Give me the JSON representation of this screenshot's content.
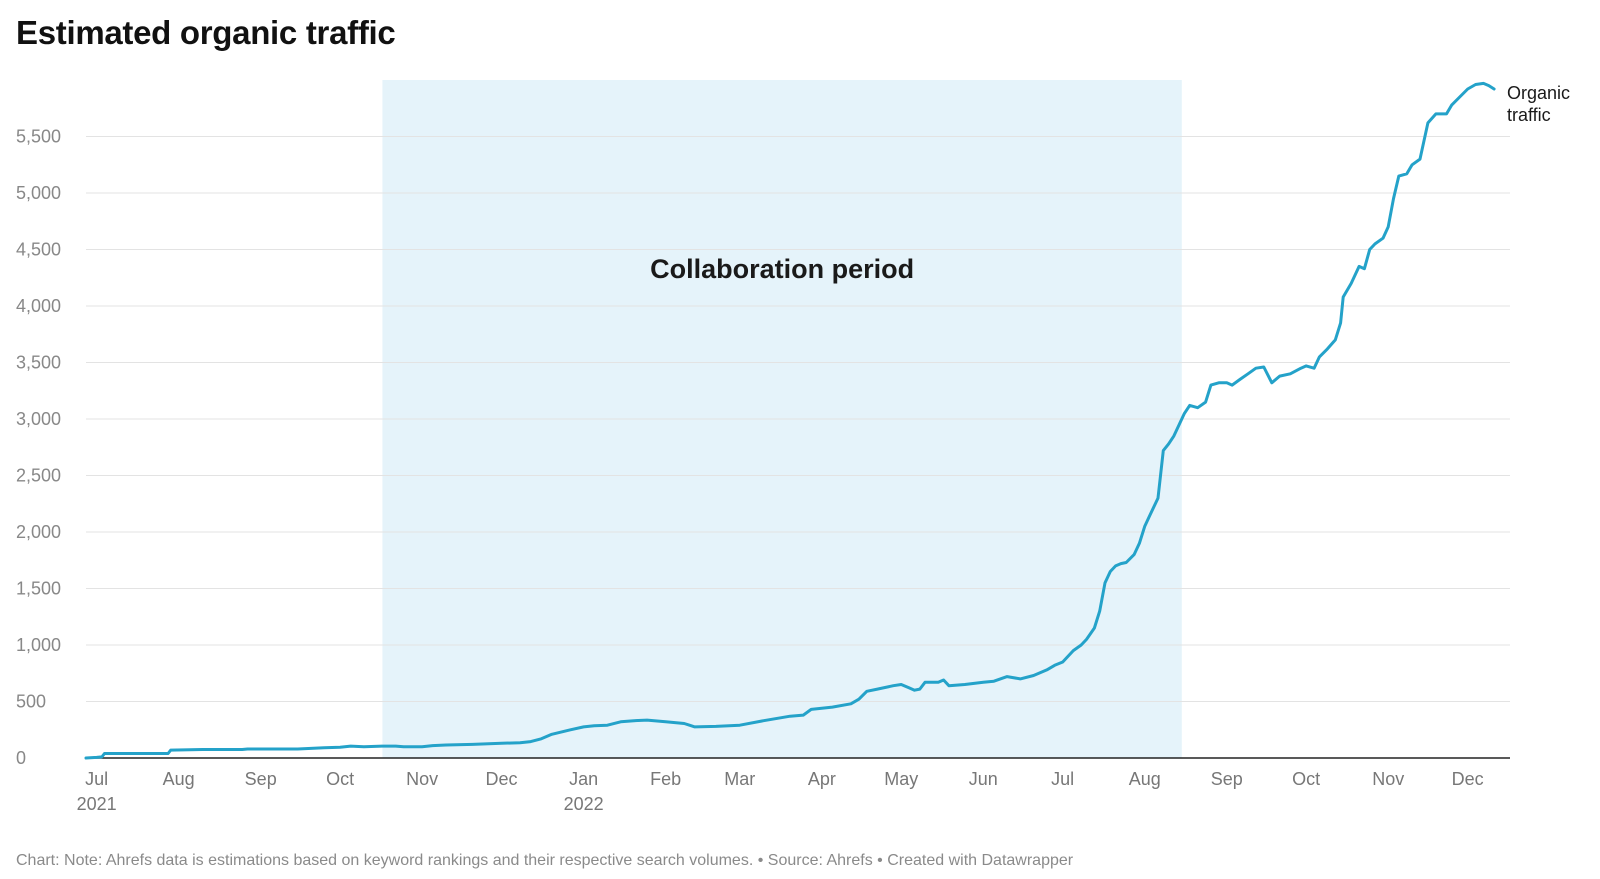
{
  "title": "Estimated organic traffic",
  "footer": {
    "note": "Chart: Note: Ahrefs data is estimations based on keyword rankings and their respective search volumes.",
    "separator": " • ",
    "source": "Source: Ahrefs",
    "credit": "Created with Datawrapper"
  },
  "colors": {
    "line": "#24a2c9",
    "highlight": "#e5f3fa",
    "grid": "#e3e3e3",
    "axis": "#222222",
    "tick_text": "#888888",
    "x_tick_text": "#777777"
  },
  "chart_data": {
    "type": "line",
    "title": "Estimated organic traffic",
    "xlabel": "",
    "ylabel": "",
    "xlim": [
      "2021-06-27",
      "2022-12-17"
    ],
    "ylim": [
      0,
      6000
    ],
    "grid": true,
    "y_ticks": [
      0,
      500,
      1000,
      1500,
      2000,
      2500,
      3000,
      3500,
      4000,
      4500,
      5000,
      5500
    ],
    "y_tick_labels": [
      "0",
      "500",
      "1,000",
      "1,500",
      "2,000",
      "2,500",
      "3,000",
      "3,500",
      "4,000",
      "4,500",
      "5,000",
      "5,500"
    ],
    "x_ticks": [
      {
        "date": "2021-07-01",
        "label": "Jul",
        "sublabel": "2021"
      },
      {
        "date": "2021-08-01",
        "label": "Aug",
        "sublabel": ""
      },
      {
        "date": "2021-09-01",
        "label": "Sep",
        "sublabel": ""
      },
      {
        "date": "2021-10-01",
        "label": "Oct",
        "sublabel": ""
      },
      {
        "date": "2021-11-01",
        "label": "Nov",
        "sublabel": ""
      },
      {
        "date": "2021-12-01",
        "label": "Dec",
        "sublabel": ""
      },
      {
        "date": "2022-01-01",
        "label": "Jan",
        "sublabel": "2022"
      },
      {
        "date": "2022-02-01",
        "label": "Feb",
        "sublabel": ""
      },
      {
        "date": "2022-03-01",
        "label": "Mar",
        "sublabel": ""
      },
      {
        "date": "2022-04-01",
        "label": "Apr",
        "sublabel": ""
      },
      {
        "date": "2022-05-01",
        "label": "May",
        "sublabel": ""
      },
      {
        "date": "2022-06-01",
        "label": "Jun",
        "sublabel": ""
      },
      {
        "date": "2022-07-01",
        "label": "Jul",
        "sublabel": ""
      },
      {
        "date": "2022-08-01",
        "label": "Aug",
        "sublabel": ""
      },
      {
        "date": "2022-09-01",
        "label": "Sep",
        "sublabel": ""
      },
      {
        "date": "2022-10-01",
        "label": "Oct",
        "sublabel": ""
      },
      {
        "date": "2022-11-01",
        "label": "Nov",
        "sublabel": ""
      },
      {
        "date": "2022-12-01",
        "label": "Dec",
        "sublabel": ""
      }
    ],
    "highlight_range": {
      "start": "2021-10-17",
      "end": "2022-08-15",
      "label": "Collaboration period"
    },
    "series": [
      {
        "name": "Organic traffic",
        "line_label": [
          "Organic",
          "traffic"
        ],
        "points": [
          [
            "2021-06-27",
            0
          ],
          [
            "2021-07-01",
            5
          ],
          [
            "2021-07-03",
            10
          ],
          [
            "2021-07-04",
            40
          ],
          [
            "2021-07-10",
            40
          ],
          [
            "2021-07-20",
            40
          ],
          [
            "2021-07-28",
            40
          ],
          [
            "2021-07-29",
            70
          ],
          [
            "2021-08-10",
            75
          ],
          [
            "2021-08-25",
            75
          ],
          [
            "2021-08-27",
            80
          ],
          [
            "2021-09-15",
            80
          ],
          [
            "2021-09-20",
            85
          ],
          [
            "2021-09-25",
            90
          ],
          [
            "2021-10-01",
            95
          ],
          [
            "2021-10-05",
            105
          ],
          [
            "2021-10-10",
            100
          ],
          [
            "2021-10-17",
            105
          ],
          [
            "2021-10-22",
            105
          ],
          [
            "2021-10-25",
            100
          ],
          [
            "2021-11-01",
            100
          ],
          [
            "2021-11-05",
            110
          ],
          [
            "2021-11-10",
            115
          ],
          [
            "2021-11-20",
            120
          ],
          [
            "2021-12-01",
            130
          ],
          [
            "2021-12-08",
            135
          ],
          [
            "2021-12-12",
            145
          ],
          [
            "2021-12-16",
            170
          ],
          [
            "2021-12-20",
            210
          ],
          [
            "2021-12-27",
            250
          ],
          [
            "2022-01-01",
            275
          ],
          [
            "2022-01-05",
            285
          ],
          [
            "2022-01-10",
            290
          ],
          [
            "2022-01-15",
            320
          ],
          [
            "2022-01-20",
            330
          ],
          [
            "2022-01-25",
            335
          ],
          [
            "2022-02-01",
            320
          ],
          [
            "2022-02-08",
            305
          ],
          [
            "2022-02-10",
            290
          ],
          [
            "2022-02-12",
            275
          ],
          [
            "2022-02-20",
            280
          ],
          [
            "2022-03-01",
            290
          ],
          [
            "2022-03-10",
            330
          ],
          [
            "2022-03-20",
            370
          ],
          [
            "2022-03-25",
            380
          ],
          [
            "2022-03-28",
            430
          ],
          [
            "2022-04-01",
            440
          ],
          [
            "2022-04-05",
            450
          ],
          [
            "2022-04-12",
            480
          ],
          [
            "2022-04-15",
            520
          ],
          [
            "2022-04-18",
            590
          ],
          [
            "2022-04-22",
            610
          ],
          [
            "2022-04-28",
            640
          ],
          [
            "2022-05-01",
            650
          ],
          [
            "2022-05-04",
            620
          ],
          [
            "2022-05-06",
            600
          ],
          [
            "2022-05-08",
            610
          ],
          [
            "2022-05-10",
            670
          ],
          [
            "2022-05-15",
            670
          ],
          [
            "2022-05-17",
            690
          ],
          [
            "2022-05-19",
            640
          ],
          [
            "2022-05-25",
            650
          ],
          [
            "2022-06-01",
            670
          ],
          [
            "2022-06-05",
            680
          ],
          [
            "2022-06-10",
            720
          ],
          [
            "2022-06-15",
            700
          ],
          [
            "2022-06-20",
            730
          ],
          [
            "2022-06-25",
            780
          ],
          [
            "2022-06-28",
            820
          ],
          [
            "2022-07-01",
            850
          ],
          [
            "2022-07-05",
            950
          ],
          [
            "2022-07-08",
            1000
          ],
          [
            "2022-07-10",
            1050
          ],
          [
            "2022-07-13",
            1150
          ],
          [
            "2022-07-15",
            1300
          ],
          [
            "2022-07-17",
            1550
          ],
          [
            "2022-07-19",
            1650
          ],
          [
            "2022-07-21",
            1700
          ],
          [
            "2022-07-23",
            1720
          ],
          [
            "2022-07-25",
            1730
          ],
          [
            "2022-07-28",
            1800
          ],
          [
            "2022-07-30",
            1900
          ],
          [
            "2022-08-01",
            2050
          ],
          [
            "2022-08-03",
            2150
          ],
          [
            "2022-08-06",
            2300
          ],
          [
            "2022-08-08",
            2720
          ],
          [
            "2022-08-10",
            2780
          ],
          [
            "2022-08-12",
            2850
          ],
          [
            "2022-08-14",
            2950
          ],
          [
            "2022-08-16",
            3050
          ],
          [
            "2022-08-18",
            3120
          ],
          [
            "2022-08-21",
            3100
          ],
          [
            "2022-08-24",
            3150
          ],
          [
            "2022-08-26",
            3300
          ],
          [
            "2022-08-29",
            3320
          ],
          [
            "2022-09-01",
            3320
          ],
          [
            "2022-09-03",
            3300
          ],
          [
            "2022-09-06",
            3350
          ],
          [
            "2022-09-09",
            3400
          ],
          [
            "2022-09-12",
            3450
          ],
          [
            "2022-09-15",
            3460
          ],
          [
            "2022-09-18",
            3320
          ],
          [
            "2022-09-21",
            3380
          ],
          [
            "2022-09-25",
            3400
          ],
          [
            "2022-09-29",
            3450
          ],
          [
            "2022-10-01",
            3470
          ],
          [
            "2022-10-04",
            3450
          ],
          [
            "2022-10-06",
            3550
          ],
          [
            "2022-10-09",
            3620
          ],
          [
            "2022-10-12",
            3700
          ],
          [
            "2022-10-14",
            3850
          ],
          [
            "2022-10-15",
            4080
          ],
          [
            "2022-10-18",
            4200
          ],
          [
            "2022-10-21",
            4350
          ],
          [
            "2022-10-23",
            4330
          ],
          [
            "2022-10-25",
            4500
          ],
          [
            "2022-10-27",
            4550
          ],
          [
            "2022-10-30",
            4600
          ],
          [
            "2022-11-01",
            4700
          ],
          [
            "2022-11-03",
            4950
          ],
          [
            "2022-11-05",
            5150
          ],
          [
            "2022-11-08",
            5170
          ],
          [
            "2022-11-10",
            5250
          ],
          [
            "2022-11-13",
            5300
          ],
          [
            "2022-11-16",
            5620
          ],
          [
            "2022-11-19",
            5700
          ],
          [
            "2022-11-23",
            5700
          ],
          [
            "2022-11-25",
            5780
          ],
          [
            "2022-11-28",
            5850
          ],
          [
            "2022-12-01",
            5920
          ],
          [
            "2022-12-04",
            5960
          ],
          [
            "2022-12-07",
            5970
          ],
          [
            "2022-12-09",
            5950
          ],
          [
            "2022-12-11",
            5920
          ]
        ]
      }
    ]
  }
}
